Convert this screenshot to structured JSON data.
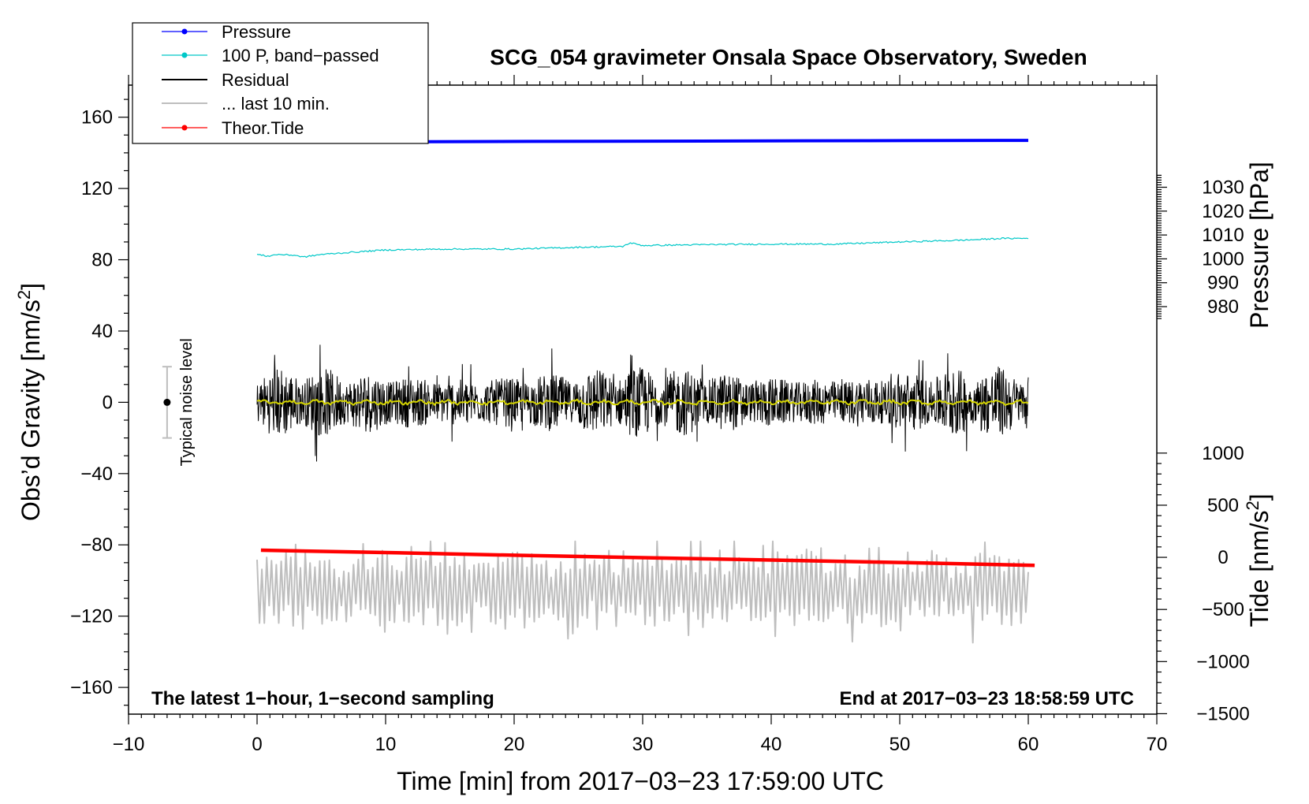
{
  "chart_data": {
    "type": "line",
    "title": "SCG_054 gravimeter Onsala Space Observatory, Sweden",
    "xlabel": "Time [min] from 2017−03−23 17:59:00 UTC",
    "ylabel_main": "Obs’d Gravity [nm/s",
    "ylabel_main_sup": "2",
    "ylabel_main_close": "]",
    "ylabel_pressure": "Pressure [hPa]",
    "ylabel_tide": "Tide [nm/s",
    "ylabel_tide_sup": "2",
    "ylabel_tide_close": "]",
    "xlim": [
      -10,
      70
    ],
    "ylim": [
      -175,
      178
    ],
    "x_ticks": [
      -10,
      0,
      10,
      20,
      30,
      40,
      50,
      60,
      70
    ],
    "x_tick_labels": [
      "−10",
      "0",
      "10",
      "20",
      "30",
      "40",
      "50",
      "60",
      "70"
    ],
    "y_ticks": [
      160,
      120,
      80,
      40,
      0,
      -40,
      -80,
      -120,
      -160
    ],
    "y_tick_labels": [
      "160",
      "120",
      "80",
      "40",
      "0",
      "−40",
      "−80",
      "−120",
      "−160"
    ],
    "pressure_axis": {
      "ticks": [
        1030,
        1020,
        1010,
        1000,
        990,
        980
      ],
      "tick_labels": [
        "1030",
        "1020",
        "1010",
        "1000",
        "990",
        "980"
      ],
      "gravity_at_1000": 80.5,
      "gravity_per_hpa": 1.34
    },
    "tide_axis": {
      "ticks": [
        1000,
        500,
        0,
        -500,
        -1000,
        -1500
      ],
      "tick_labels": [
        "1000",
        "500",
        "0",
        "−500",
        "−1000",
        "−1500"
      ],
      "gravity_at_0": -87,
      "gravity_per_unit": 0.0585
    },
    "legend": [
      {
        "label": "Pressure",
        "color": "#0000ff",
        "marker": true
      },
      {
        "label": "100 P, band−passed",
        "color": "#00c8c8",
        "marker": true
      },
      {
        "label": "Residual",
        "color": "#000000",
        "marker": false
      },
      {
        "label": "... last 10 min.",
        "color": "#bebebe",
        "marker": false
      },
      {
        "label": "Theor.Tide",
        "color": "#ff0000",
        "marker": true
      }
    ],
    "noise_level": {
      "x": -7,
      "center": 0,
      "half_range": 20,
      "label": "Typical noise level"
    },
    "note_left": "The latest 1−hour, 1−second sampling",
    "note_right": "End at 2017−03−23 18:58:59 UTC",
    "series": [
      {
        "name": "Pressure",
        "color": "#0000ff",
        "x": [
          0,
          21,
          47.5,
          60
        ],
        "y": [
          146,
          146.4,
          146.8,
          147
        ]
      },
      {
        "name": "100 P, band-passed",
        "color": "#00c8c8",
        "x": [
          0,
          0.8,
          1.6,
          3,
          3.6,
          5,
          7,
          10,
          15,
          20,
          25,
          28.5,
          29,
          30,
          35,
          40,
          45,
          50,
          55,
          58,
          60
        ],
        "y": [
          83,
          82,
          83,
          82.5,
          81.5,
          83,
          84,
          85.5,
          86,
          86,
          87,
          87.5,
          89.5,
          88,
          88.5,
          88.8,
          88.8,
          90,
          91,
          92,
          92
        ]
      },
      {
        "name": "Theor.Tide",
        "color": "#ff0000",
        "x": [
          0.3,
          10,
          20,
          30,
          40,
          50,
          60.5
        ],
        "y": [
          -83,
          -84.3,
          -85.8,
          -87.2,
          -88.5,
          -89.9,
          -91.5
        ]
      },
      {
        "name": "Residual",
        "color": "#000000",
        "x_range": [
          0,
          60
        ],
        "center": 0,
        "amplitude_typical": 20,
        "amplitude_max": 41,
        "min": -45
      },
      {
        "name": "Residual smoothed",
        "color": "#d4d400",
        "x_range": [
          0,
          60
        ],
        "center": 0
      },
      {
        "name": "... last 10 min.",
        "color": "#bebebe",
        "x_range": [
          0,
          60
        ],
        "center": -105,
        "min": -136,
        "max": -78
      }
    ]
  }
}
